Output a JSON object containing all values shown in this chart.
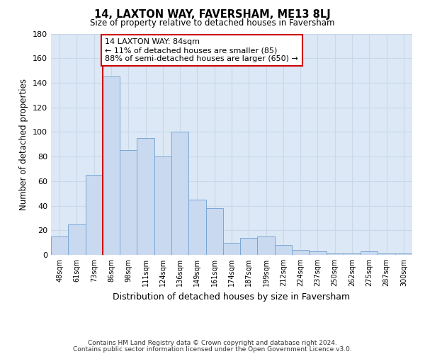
{
  "title": "14, LAXTON WAY, FAVERSHAM, ME13 8LJ",
  "subtitle": "Size of property relative to detached houses in Faversham",
  "xlabel": "Distribution of detached houses by size in Faversham",
  "ylabel": "Number of detached properties",
  "bin_labels": [
    "48sqm",
    "61sqm",
    "73sqm",
    "86sqm",
    "98sqm",
    "111sqm",
    "124sqm",
    "136sqm",
    "149sqm",
    "161sqm",
    "174sqm",
    "187sqm",
    "199sqm",
    "212sqm",
    "224sqm",
    "237sqm",
    "250sqm",
    "262sqm",
    "275sqm",
    "287sqm",
    "300sqm"
  ],
  "bar_heights": [
    15,
    25,
    65,
    145,
    85,
    95,
    80,
    100,
    45,
    38,
    10,
    14,
    15,
    8,
    4,
    3,
    1,
    1,
    3,
    1,
    1
  ],
  "bar_color": "#c9d9f0",
  "bar_edge_color": "#7ba7d4",
  "vline_x_idx": 3,
  "annotation_title": "14 LAXTON WAY: 84sqm",
  "annotation_line1": "← 11% of detached houses are smaller (85)",
  "annotation_line2": "88% of semi-detached houses are larger (650) →",
  "annotation_box_color": "#ffffff",
  "annotation_box_edge": "#cc0000",
  "vline_color": "#cc0000",
  "ylim": [
    0,
    180
  ],
  "yticks": [
    0,
    20,
    40,
    60,
    80,
    100,
    120,
    140,
    160,
    180
  ],
  "footer1": "Contains HM Land Registry data © Crown copyright and database right 2024.",
  "footer2": "Contains public sector information licensed under the Open Government Licence v3.0.",
  "background_color": "#ffffff",
  "grid_color": "#c8d8e8"
}
